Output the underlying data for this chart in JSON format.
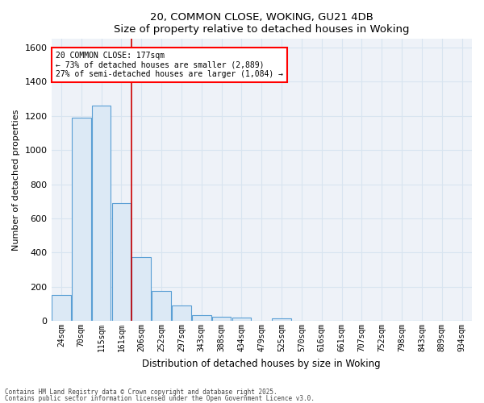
{
  "title": "20, COMMON CLOSE, WOKING, GU21 4DB",
  "subtitle": "Size of property relative to detached houses in Woking",
  "xlabel": "Distribution of detached houses by size in Woking",
  "ylabel": "Number of detached properties",
  "bin_labels": [
    "24sqm",
    "70sqm",
    "115sqm",
    "161sqm",
    "206sqm",
    "252sqm",
    "297sqm",
    "343sqm",
    "388sqm",
    "434sqm",
    "479sqm",
    "525sqm",
    "570sqm",
    "616sqm",
    "661sqm",
    "707sqm",
    "752sqm",
    "798sqm",
    "843sqm",
    "889sqm",
    "934sqm"
  ],
  "bar_values": [
    150,
    1190,
    1260,
    690,
    375,
    175,
    90,
    32,
    22,
    18,
    0,
    15,
    0,
    0,
    0,
    0,
    0,
    0,
    0,
    0,
    0
  ],
  "bar_facecolor": "#dce9f5",
  "bar_edgecolor": "#5a9fd4",
  "grid_color": "#d8e4f0",
  "bg_color": "#eef2f8",
  "annotation_text": "20 COMMON CLOSE: 177sqm\n← 73% of detached houses are smaller (2,889)\n27% of semi-detached houses are larger (1,084) →",
  "redline_x": 3.5,
  "redline_color": "#cc0000",
  "ylim": [
    0,
    1650
  ],
  "yticks": [
    0,
    200,
    400,
    600,
    800,
    1000,
    1200,
    1400,
    1600
  ],
  "footer1": "Contains HM Land Registry data © Crown copyright and database right 2025.",
  "footer2": "Contains public sector information licensed under the Open Government Licence v3.0."
}
